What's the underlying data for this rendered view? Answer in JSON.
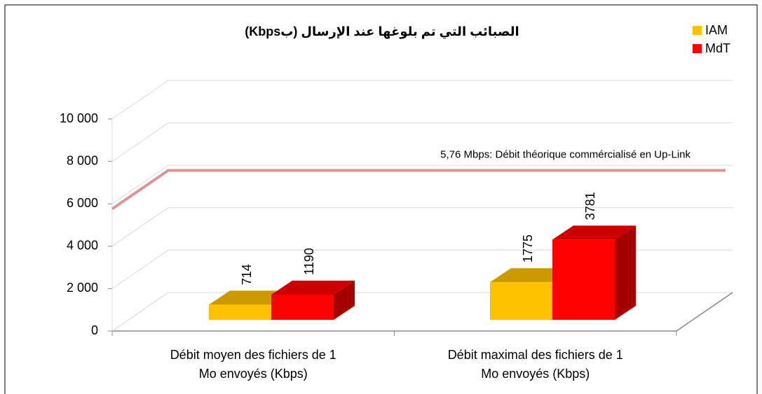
{
  "chart_data": {
    "type": "bar3d",
    "title": "الصبائب التي تم بلوغها عند الإرسال (بKbps)",
    "categories": [
      [
        "Débit moyen des fichiers de 1",
        "Mo envoyés (Kbps)"
      ],
      [
        "Débit maximal des fichiers de 1",
        "Mo envoyés (Kbps)"
      ]
    ],
    "series": [
      {
        "name": "IAM",
        "color": "#ffc000",
        "values": [
          714,
          1775
        ]
      },
      {
        "name": "MdT",
        "color": "#ff0000",
        "values": [
          1190,
          3781
        ]
      }
    ],
    "ylim": [
      0,
      10000
    ],
    "yticks": [
      0,
      {
        "value": 2000,
        "label": "2 000"
      },
      {
        "value": 4000,
        "label": "4 000"
      },
      {
        "value": 6000,
        "label": "6 000"
      },
      {
        "value": 8000,
        "label": "8 000"
      },
      {
        "value": 10000,
        "label": "10 000"
      }
    ],
    "reference_line": {
      "value": 5760,
      "label": "5,76 Mbps: Débit théorique commércialisé en Up-Link",
      "color": "#d99694"
    },
    "grid": true,
    "legend": "top-right"
  }
}
